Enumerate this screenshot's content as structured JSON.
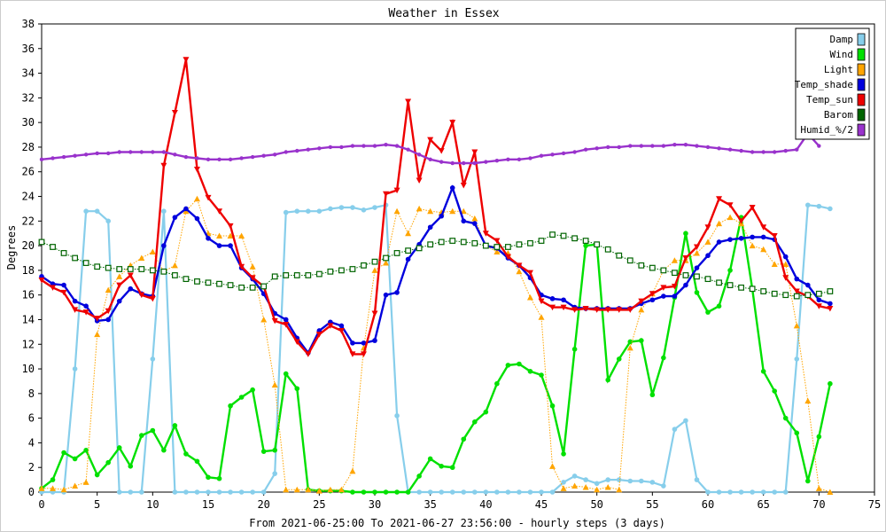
{
  "chart_data": {
    "type": "line",
    "title": "Weather in Essex",
    "xlabel": "From 2021-06-25:00 To 2021-06-27 23:56:00 - hourly steps (3 days)",
    "ylabel": "Degrees",
    "xlim": [
      0,
      75
    ],
    "ylim": [
      0,
      38
    ],
    "xticks": [
      "0",
      "5",
      "10",
      "15",
      "20",
      "25",
      "30",
      "35",
      "40",
      "45",
      "50",
      "55",
      "60",
      "65",
      "70",
      "75"
    ],
    "yticks": [
      "0",
      "2",
      "4",
      "6",
      "8",
      "10",
      "12",
      "14",
      "16",
      "18",
      "20",
      "22",
      "24",
      "26",
      "28",
      "30",
      "32",
      "34",
      "36",
      "38"
    ],
    "grid": true,
    "legend_position": "top-right",
    "series": [
      {
        "name": "Damp",
        "color": "#87ceeb",
        "style": "solid",
        "marker": "circle",
        "x": [
          0,
          1,
          2,
          3,
          4,
          5,
          6,
          7,
          8,
          9,
          10,
          11,
          12,
          13,
          14,
          15,
          16,
          17,
          18,
          19,
          20,
          21,
          22,
          23,
          24,
          25,
          26,
          27,
          28,
          29,
          30,
          31,
          32,
          33,
          34,
          35,
          36,
          37,
          38,
          39,
          40,
          41,
          42,
          43,
          44,
          45,
          46,
          47,
          48,
          49,
          50,
          51,
          52,
          53,
          54,
          55,
          56,
          57,
          58,
          59,
          60,
          61,
          62,
          63,
          64,
          65,
          66,
          67,
          68,
          69,
          70,
          71
        ],
        "values": [
          0,
          0,
          0,
          10,
          22.8,
          22.8,
          22,
          0,
          0,
          0,
          10.8,
          22.8,
          0,
          0,
          0,
          0,
          0,
          0,
          0,
          0,
          0,
          1.5,
          22.7,
          22.8,
          22.8,
          22.8,
          23,
          23.1,
          23.1,
          22.9,
          23.1,
          23.3,
          6.2,
          0,
          0,
          0,
          0,
          0,
          0,
          0,
          0,
          0,
          0,
          0,
          0,
          0,
          0,
          0.8,
          1.3,
          1,
          0.7,
          1,
          1,
          0.9,
          0.9,
          0.8,
          0.5,
          5.1,
          5.8,
          1,
          0,
          0,
          0,
          0,
          0,
          0,
          0,
          0,
          10.8,
          23.3,
          23.2,
          23
        ]
      },
      {
        "name": "Wind",
        "color": "#00e000",
        "style": "solid",
        "marker": "circle",
        "x": [
          0,
          1,
          2,
          3,
          4,
          5,
          6,
          7,
          8,
          9,
          10,
          11,
          12,
          13,
          14,
          15,
          16,
          17,
          18,
          19,
          20,
          21,
          22,
          23,
          24,
          25,
          26,
          27,
          28,
          29,
          30,
          31,
          32,
          33,
          34,
          35,
          36,
          37,
          38,
          39,
          40,
          41,
          42,
          43,
          44,
          45,
          46,
          47,
          48,
          49,
          50,
          51,
          52,
          53,
          54,
          55,
          56,
          57,
          58,
          59,
          60,
          61,
          62,
          63,
          64,
          65,
          66,
          67,
          68,
          69,
          70,
          71
        ],
        "values": [
          0.3,
          1,
          3.2,
          2.7,
          3.4,
          1.4,
          2.4,
          3.6,
          2.1,
          4.6,
          5,
          3.4,
          5.4,
          3.1,
          2.5,
          1.2,
          1.1,
          7,
          7.7,
          8.3,
          3.3,
          3.4,
          9.6,
          8.4,
          0.2,
          0.1,
          0.1,
          0.1,
          0,
          0,
          0,
          0,
          0,
          0,
          1.3,
          2.7,
          2.1,
          2,
          4.3,
          5.7,
          6.5,
          8.8,
          10.3,
          10.4,
          9.8,
          9.5,
          7,
          3.1,
          11.6,
          20,
          20.1,
          9.1,
          10.8,
          12.2,
          12.3,
          7.9,
          10.9,
          15.8,
          21,
          16.2,
          14.6,
          15.1,
          18,
          22.3,
          16.5,
          9.8,
          8.2,
          6,
          4.8,
          0.9,
          4.5,
          8.8
        ]
      },
      {
        "name": "Light",
        "color": "#ffa500",
        "style": "dotted",
        "marker": "triangle",
        "x": [
          0,
          1,
          2,
          3,
          4,
          5,
          6,
          7,
          8,
          9,
          10,
          11,
          12,
          13,
          14,
          15,
          16,
          17,
          18,
          19,
          20,
          21,
          22,
          23,
          24,
          25,
          26,
          27,
          28,
          29,
          30,
          31,
          32,
          33,
          34,
          35,
          36,
          37,
          38,
          39,
          40,
          41,
          42,
          43,
          44,
          45,
          46,
          47,
          48,
          49,
          50,
          51,
          52,
          53,
          54,
          55,
          56,
          57,
          58,
          59,
          60,
          61,
          62,
          63,
          64,
          65,
          66,
          67,
          68,
          69,
          70,
          71
        ],
        "values": [
          0.3,
          0.3,
          0.2,
          0.5,
          0.8,
          12.8,
          16.4,
          17.5,
          18.4,
          19,
          19.5,
          17.9,
          18.4,
          22.8,
          23.8,
          21,
          20.8,
          20.8,
          20.8,
          18.3,
          14,
          8.7,
          0.2,
          0.2,
          0.2,
          0.1,
          0.2,
          0.2,
          1.7,
          11.7,
          18,
          18.6,
          22.8,
          21,
          23,
          22.8,
          22.7,
          22.8,
          22.8,
          22.2,
          20,
          19.5,
          19.4,
          17.9,
          15.8,
          14.2,
          2.1,
          0.3,
          0.5,
          0.4,
          0.2,
          0.4,
          0.2,
          11.7,
          14.8,
          16.1,
          18,
          18.8,
          18.8,
          19.4,
          20.3,
          21.8,
          22.3,
          21.8,
          20,
          19.7,
          18.5,
          18.5,
          13.5,
          7.4,
          0.3,
          0
        ]
      },
      {
        "name": "Temp_shade",
        "color": "#0000dd",
        "style": "solid",
        "marker": "circle",
        "x": [
          0,
          1,
          2,
          3,
          4,
          5,
          6,
          7,
          8,
          9,
          10,
          11,
          12,
          13,
          14,
          15,
          16,
          17,
          18,
          19,
          20,
          21,
          22,
          23,
          24,
          25,
          26,
          27,
          28,
          29,
          30,
          31,
          32,
          33,
          34,
          35,
          36,
          37,
          38,
          39,
          40,
          41,
          42,
          43,
          44,
          45,
          46,
          47,
          48,
          49,
          50,
          51,
          52,
          53,
          54,
          55,
          56,
          57,
          58,
          59,
          60,
          61,
          62,
          63,
          64,
          65,
          66,
          67,
          68,
          69,
          70,
          71
        ],
        "values": [
          17.5,
          16.9,
          16.8,
          15.5,
          15.1,
          13.9,
          14,
          15.5,
          16.5,
          16.1,
          15.9,
          20,
          22.3,
          23,
          22.2,
          20.6,
          20,
          20,
          18.2,
          17.3,
          16.1,
          14.5,
          14,
          12.5,
          11.3,
          13.1,
          13.8,
          13.5,
          12.1,
          12.1,
          12.3,
          16,
          16.2,
          18.9,
          20.1,
          21.5,
          22.4,
          24.7,
          22,
          21.8,
          20,
          19.8,
          19,
          18.4,
          17.4,
          16,
          15.7,
          15.6,
          15,
          14.9,
          14.9,
          14.9,
          14.9,
          14.9,
          15.3,
          15.6,
          15.9,
          15.9,
          16.8,
          18.2,
          19.2,
          20.3,
          20.5,
          20.6,
          20.7,
          20.7,
          20.5,
          19.1,
          17.3,
          16.8,
          15.6,
          15.3
        ]
      },
      {
        "name": "Temp_sun",
        "color": "#ee0000",
        "style": "solid",
        "marker": "tri-down",
        "x": [
          0,
          1,
          2,
          3,
          4,
          5,
          6,
          7,
          8,
          9,
          10,
          11,
          12,
          13,
          14,
          15,
          16,
          17,
          18,
          19,
          20,
          21,
          22,
          23,
          24,
          25,
          26,
          27,
          28,
          29,
          30,
          31,
          32,
          33,
          34,
          35,
          36,
          37,
          38,
          39,
          40,
          41,
          42,
          43,
          44,
          45,
          46,
          47,
          48,
          49,
          50,
          51,
          52,
          53,
          54,
          55,
          56,
          57,
          58,
          59,
          60,
          61,
          62,
          63,
          64,
          65,
          66,
          67,
          68,
          69,
          70,
          71
        ],
        "values": [
          17.2,
          16.6,
          16.2,
          14.8,
          14.6,
          14.1,
          14.7,
          16.8,
          17.6,
          16,
          15.7,
          26.5,
          30.8,
          35.1,
          26.2,
          23.9,
          22.8,
          21.6,
          18.3,
          17.4,
          16.7,
          13.9,
          13.6,
          12.2,
          11.2,
          12.8,
          13.5,
          13.1,
          11.2,
          11.2,
          14.5,
          24.2,
          24.5,
          31.7,
          25.3,
          28.6,
          27.7,
          30,
          24.9,
          27.6,
          21,
          20.4,
          19.1,
          18.4,
          17.8,
          15.5,
          15,
          15,
          14.8,
          14.9,
          14.8,
          14.8,
          14.8,
          14.8,
          15.5,
          16.1,
          16.6,
          16.7,
          19,
          19.9,
          21.5,
          23.8,
          23.3,
          22,
          23.1,
          21.5,
          20.8,
          17.4,
          16.3,
          15.9,
          15.1,
          14.9
        ]
      },
      {
        "name": "Barom",
        "color": "#006400",
        "style": "dotted",
        "marker": "square",
        "x": [
          0,
          1,
          2,
          3,
          4,
          5,
          6,
          7,
          8,
          9,
          10,
          11,
          12,
          13,
          14,
          15,
          16,
          17,
          18,
          19,
          20,
          21,
          22,
          23,
          24,
          25,
          26,
          27,
          28,
          29,
          30,
          31,
          32,
          33,
          34,
          35,
          36,
          37,
          38,
          39,
          40,
          41,
          42,
          43,
          44,
          45,
          46,
          47,
          48,
          49,
          50,
          51,
          52,
          53,
          54,
          55,
          56,
          57,
          58,
          59,
          60,
          61,
          62,
          63,
          64,
          65,
          66,
          67,
          68,
          69,
          70,
          71
        ],
        "values": [
          20.3,
          19.9,
          19.4,
          19,
          18.6,
          18.3,
          18.2,
          18.1,
          18.1,
          18.1,
          18,
          17.9,
          17.6,
          17.3,
          17.1,
          17,
          16.9,
          16.8,
          16.6,
          16.6,
          16.7,
          17.5,
          17.6,
          17.6,
          17.6,
          17.7,
          17.9,
          18,
          18.1,
          18.4,
          18.7,
          19,
          19.4,
          19.6,
          19.8,
          20.1,
          20.3,
          20.4,
          20.3,
          20.2,
          20,
          19.9,
          19.9,
          20.1,
          20.2,
          20.4,
          20.9,
          20.8,
          20.6,
          20.4,
          20.1,
          19.7,
          19.2,
          18.8,
          18.4,
          18.2,
          18,
          17.8,
          17.6,
          17.5,
          17.3,
          17,
          16.8,
          16.6,
          16.5,
          16.3,
          16.1,
          16,
          15.9,
          16,
          16.1,
          16.3
        ]
      },
      {
        "name": "Humid_%/2",
        "color": "#9932cc",
        "style": "solid",
        "marker": "circle-small",
        "x": [
          0,
          1,
          2,
          3,
          4,
          5,
          6,
          7,
          8,
          9,
          10,
          11,
          12,
          13,
          14,
          15,
          16,
          17,
          18,
          19,
          20,
          21,
          22,
          23,
          24,
          25,
          26,
          27,
          28,
          29,
          30,
          31,
          32,
          33,
          34,
          35,
          36,
          37,
          38,
          39,
          40,
          41,
          42,
          43,
          44,
          45,
          46,
          47,
          48,
          49,
          50,
          51,
          52,
          53,
          54,
          55,
          56,
          57,
          58,
          59,
          60,
          61,
          62,
          63,
          64,
          65,
          66,
          67,
          68,
          69,
          70
        ],
        "values": [
          27,
          27.1,
          27.2,
          27.3,
          27.4,
          27.5,
          27.5,
          27.6,
          27.6,
          27.6,
          27.6,
          27.6,
          27.4,
          27.2,
          27.1,
          27,
          27,
          27,
          27.1,
          27.2,
          27.3,
          27.4,
          27.6,
          27.7,
          27.8,
          27.9,
          28,
          28,
          28.1,
          28.1,
          28.1,
          28.2,
          28.1,
          27.8,
          27.4,
          27,
          26.8,
          26.7,
          26.7,
          26.7,
          26.8,
          26.9,
          27,
          27,
          27.1,
          27.3,
          27.4,
          27.5,
          27.6,
          27.8,
          27.9,
          28,
          28,
          28.1,
          28.1,
          28.1,
          28.1,
          28.2,
          28.2,
          28.1,
          28,
          27.9,
          27.8,
          27.7,
          27.6,
          27.6,
          27.6,
          27.7,
          27.8,
          29.1,
          28.1
        ]
      }
    ]
  }
}
